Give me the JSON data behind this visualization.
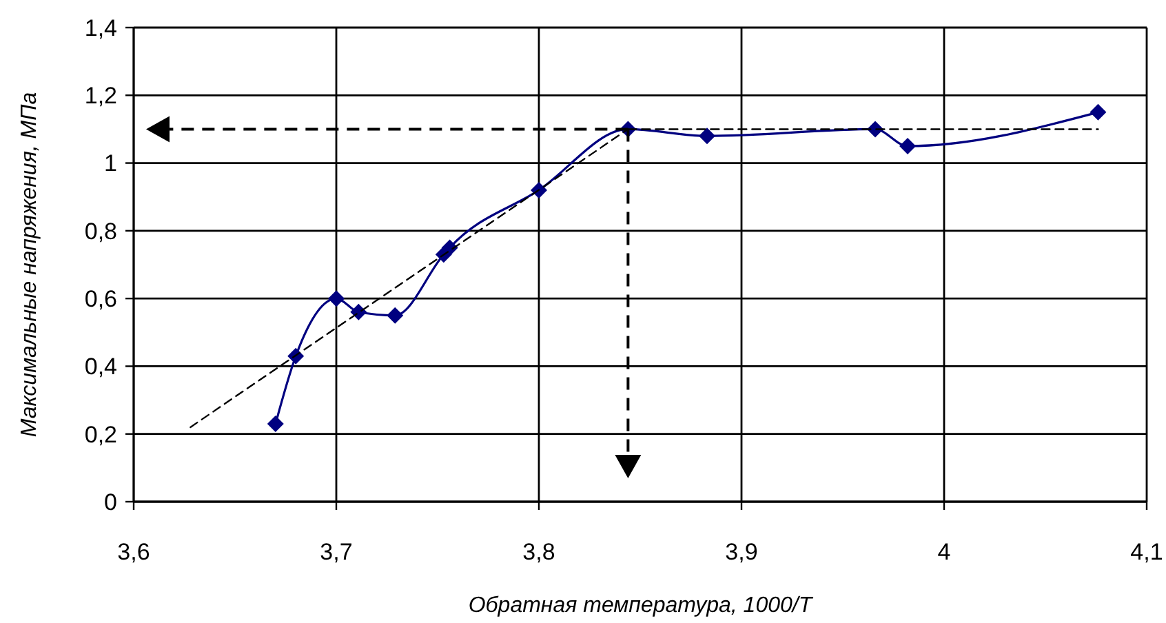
{
  "chart_data": {
    "type": "line",
    "xlabel": "Обратная температура, 1000/T",
    "ylabel": "Максимальные напряжения, МПа",
    "xlim": [
      3.6,
      4.1
    ],
    "xticks": [
      {
        "value": 3.6,
        "label": "3,6"
      },
      {
        "value": 3.7,
        "label": "3,7"
      },
      {
        "value": 3.8,
        "label": "3,8"
      },
      {
        "value": 3.9,
        "label": "3,9"
      },
      4,
      {
        "value": 4.1,
        "label": "4,1"
      }
    ],
    "ylim": [
      0,
      1.4
    ],
    "yticks": [
      0,
      {
        "value": 0.2,
        "label": "0,2"
      },
      {
        "value": 0.4,
        "label": "0,4"
      },
      {
        "value": 0.6,
        "label": "0,6"
      },
      {
        "value": 0.8,
        "label": "0,8"
      },
      1,
      {
        "value": 1.2,
        "label": "1,2"
      },
      {
        "value": 1.4,
        "label": "1,4"
      }
    ],
    "grid": true,
    "series": [
      {
        "color": "#000080",
        "marker": "diamond",
        "line_style": "solid",
        "x": [
          3.67,
          3.68,
          3.7,
          3.711,
          3.729,
          3.753,
          3.756,
          3.8,
          3.844,
          3.883,
          3.966,
          3.982,
          4.076
        ],
        "values": [
          0.23,
          0.43,
          0.6,
          0.56,
          0.55,
          0.73,
          0.75,
          0.92,
          1.1,
          1.08,
          1.1,
          1.05,
          1.15
        ]
      },
      {
        "type": "line",
        "color": "#000000",
        "marker": "none",
        "line_style": "dashed",
        "x": [
          3.628,
          3.844
        ],
        "values": [
          0.22,
          1.1
        ]
      },
      {
        "type": "line",
        "color": "#000000",
        "marker": "none",
        "line_style": "dashed",
        "x": [
          3.844,
          4.076
        ],
        "values": [
          1.1,
          1.1
        ]
      }
    ]
  }
}
